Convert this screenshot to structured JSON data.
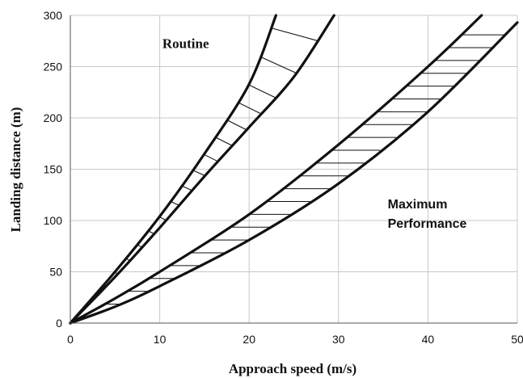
{
  "chart_data": {
    "type": "area",
    "title": "",
    "xlabel": "Approach speed (m/s)",
    "ylabel": "Landing distance (m)",
    "xlim": [
      0,
      50
    ],
    "ylim": [
      0,
      300
    ],
    "x_ticks": [
      0,
      10,
      20,
      30,
      40,
      50
    ],
    "y_ticks": [
      0,
      50,
      100,
      150,
      200,
      250,
      300
    ],
    "grid": true,
    "legend": "none",
    "colors": {
      "bounds": "#111111",
      "grid": "#c9c9c9",
      "background": "#ffffff"
    },
    "bands": [
      {
        "name": "Routine",
        "hatch": "diagonal",
        "upper": [
          [
            0,
            0
          ],
          [
            5,
            50
          ],
          [
            10,
            104
          ],
          [
            15,
            165
          ],
          [
            20,
            233
          ],
          [
            23,
            300
          ]
        ],
        "lower": [
          [
            0,
            0
          ],
          [
            5,
            45
          ],
          [
            10,
            93
          ],
          [
            15,
            143
          ],
          [
            20,
            191
          ],
          [
            25,
            240
          ],
          [
            29.5,
            300
          ]
        ]
      },
      {
        "name": "Maximum Performance",
        "hatch": "horizontal",
        "upper": [
          [
            0,
            0
          ],
          [
            5,
            24
          ],
          [
            10,
            50
          ],
          [
            20,
            106
          ],
          [
            30,
            174
          ],
          [
            40,
            250
          ],
          [
            46,
            300
          ]
        ],
        "lower": [
          [
            0,
            0
          ],
          [
            5,
            16
          ],
          [
            10,
            36
          ],
          [
            20,
            81
          ],
          [
            30,
            136
          ],
          [
            40,
            206
          ],
          [
            50,
            293
          ]
        ]
      }
    ],
    "annotations": [
      {
        "text": "Routine",
        "x": 10.3,
        "y": 268
      },
      {
        "text": "Maximum",
        "x": 35.5,
        "y": 112
      },
      {
        "text": "Performance",
        "x": 35.5,
        "y": 93
      }
    ]
  }
}
